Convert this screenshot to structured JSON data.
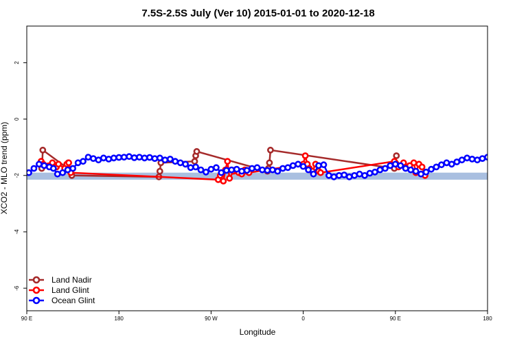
{
  "chart_data": {
    "type": "line",
    "title": "7.5S-2.5S July (Ver 10)   2015-01-01 to 2020-12-18",
    "xlabel": "Longitude",
    "ylabel": "XCO2 - MLO trend (ppm)",
    "x_ticks": [
      {
        "value": 90,
        "label": "90 E"
      },
      {
        "value": 180,
        "label": "180"
      },
      {
        "value": 270,
        "label": "90 W"
      },
      {
        "value": 360,
        "label": "0"
      },
      {
        "value": 450,
        "label": "90 E"
      },
      {
        "value": 540,
        "label": "180"
      }
    ],
    "y_ticks": [
      {
        "value": 2,
        "label": "2"
      },
      {
        "value": 0,
        "label": "0"
      },
      {
        "value": -2,
        "label": "-2"
      },
      {
        "value": -4,
        "label": "-4"
      },
      {
        "value": -6,
        "label": "-6"
      }
    ],
    "xlim": [
      90,
      540
    ],
    "ylim": [
      -6.8,
      3.3
    ],
    "reference_band": {
      "y_min": -2.15,
      "y_max": -1.9,
      "color": "#a9bfe0"
    },
    "series": [
      {
        "name": "Land Nadir",
        "color": "#a52a2a",
        "x": [
          104,
          104.6,
          105,
          105.6,
          130,
          130.5,
          134,
          219,
          220,
          221,
          254,
          255,
          256,
          325,
          326,
          327,
          328,
          449,
          450,
          451
        ],
        "y": [
          -1.5,
          -1.75,
          -1.6,
          -1.1,
          -1.75,
          -1.55,
          -2.0,
          -2.05,
          -1.85,
          -1.55,
          -1.5,
          -1.3,
          -1.15,
          -1.85,
          -1.75,
          -1.55,
          -1.1,
          -1.75,
          -1.55,
          -1.3
        ]
      },
      {
        "name": "Land Glint",
        "color": "#ff0000",
        "x": [
          104,
          106,
          115,
          119,
          121,
          127,
          129,
          131,
          133,
          277,
          279,
          282,
          284,
          286,
          288,
          292,
          294,
          297,
          300,
          303,
          305,
          307,
          360,
          362,
          364,
          366,
          369,
          372,
          375,
          377,
          449,
          451,
          453,
          458,
          461,
          464,
          468,
          470,
          473,
          476,
          479
        ],
        "y": [
          -1.5,
          -1.6,
          -1.55,
          -1.7,
          -1.6,
          -1.75,
          -1.6,
          -1.55,
          -1.9,
          -2.15,
          -2.0,
          -2.2,
          -1.8,
          -1.5,
          -2.1,
          -1.85,
          -1.8,
          -1.9,
          -1.95,
          -1.8,
          -1.85,
          -1.9,
          -1.6,
          -1.3,
          -1.6,
          -1.75,
          -1.85,
          -1.6,
          -1.85,
          -1.9,
          -1.5,
          -1.6,
          -1.7,
          -1.55,
          -1.7,
          -1.65,
          -1.55,
          -1.9,
          -1.6,
          -1.7,
          -2.0
        ],
        "marker_count_note": ""
      },
      {
        "name": "Ocean Glint",
        "color": "#0000ff",
        "x": [
          92,
          97,
          102,
          107,
          112,
          116,
          120,
          125,
          130,
          135,
          140,
          145,
          150,
          155,
          160,
          165,
          170,
          175,
          180,
          185,
          190,
          195,
          200,
          205,
          210,
          215,
          220,
          225,
          230,
          235,
          240,
          245,
          250,
          255,
          260,
          265,
          270,
          275,
          280,
          285,
          290,
          295,
          300,
          305,
          310,
          315,
          320,
          325,
          330,
          335,
          340,
          345,
          350,
          355,
          360,
          365,
          370,
          375,
          380,
          385,
          390,
          395,
          400,
          405,
          410,
          415,
          420,
          425,
          430,
          435,
          440,
          445,
          450,
          455,
          460,
          465,
          470,
          475,
          480,
          485,
          490,
          495,
          500,
          505,
          510,
          515,
          520,
          525,
          530,
          535,
          540
        ],
        "y": [
          -1.9,
          -1.75,
          -1.6,
          -1.65,
          -1.7,
          -1.75,
          -1.95,
          -1.9,
          -1.8,
          -1.75,
          -1.55,
          -1.5,
          -1.35,
          -1.4,
          -1.45,
          -1.38,
          -1.42,
          -1.38,
          -1.36,
          -1.35,
          -1.33,
          -1.37,
          -1.35,
          -1.38,
          -1.36,
          -1.4,
          -1.38,
          -1.45,
          -1.42,
          -1.5,
          -1.55,
          -1.6,
          -1.72,
          -1.7,
          -1.8,
          -1.88,
          -1.78,
          -1.72,
          -1.9,
          -1.82,
          -1.8,
          -1.78,
          -1.85,
          -1.82,
          -1.75,
          -1.72,
          -1.8,
          -1.82,
          -1.8,
          -1.85,
          -1.75,
          -1.72,
          -1.65,
          -1.6,
          -1.68,
          -1.8,
          -1.95,
          -1.65,
          -1.62,
          -2.0,
          -2.05,
          -2.0,
          -1.98,
          -2.05,
          -2.0,
          -1.95,
          -2.0,
          -1.92,
          -1.88,
          -1.8,
          -1.75,
          -1.65,
          -1.6,
          -1.65,
          -1.75,
          -1.8,
          -1.85,
          -1.95,
          -1.88,
          -1.78,
          -1.7,
          -1.62,
          -1.55,
          -1.6,
          -1.52,
          -1.45,
          -1.38,
          -1.42,
          -1.45,
          -1.4,
          -1.35
        ]
      }
    ],
    "legend": {
      "placement": "bottom-left",
      "entries": [
        "Land Nadir",
        "Land Glint",
        "Ocean Glint"
      ]
    },
    "grid": false
  }
}
